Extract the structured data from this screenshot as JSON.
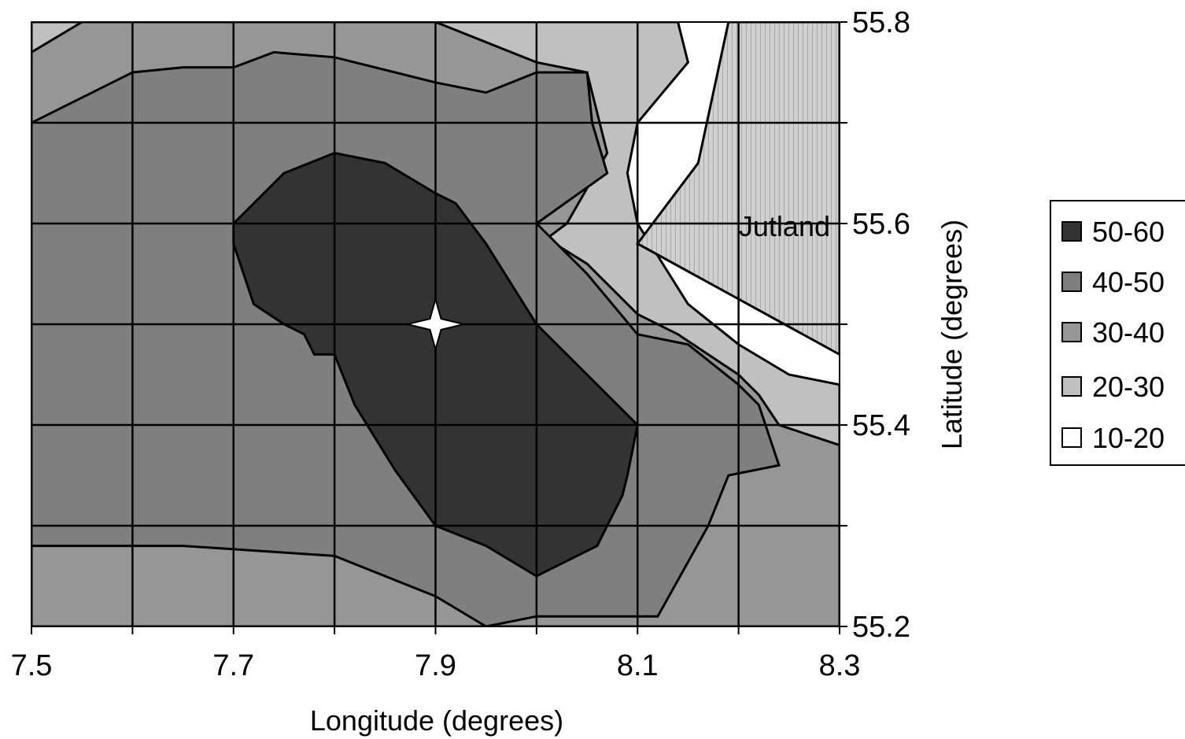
{
  "chart_data": {
    "type": "contour",
    "title": "",
    "xlabel": "Longitude (degrees)",
    "ylabel": "Latitude (degrees)",
    "xlim": [
      7.5,
      8.3
    ],
    "ylim": [
      55.2,
      55.8
    ],
    "x_ticks": [
      "7.5",
      "7.7",
      "7.9",
      "8.1",
      "8.3"
    ],
    "y_ticks": [
      "55.2",
      "55.4",
      "55.6",
      "55.8"
    ],
    "grid": true,
    "y_axis_side": "right",
    "legend_position": "right",
    "legend": [
      {
        "label": "50-60",
        "color": "#333333"
      },
      {
        "label": "40-50",
        "color": "#7f7f7f"
      },
      {
        "label": "30-40",
        "color": "#969696"
      },
      {
        "label": "20-30",
        "color": "#c0c0c0"
      },
      {
        "label": "10-20",
        "color": "#ffffff"
      }
    ],
    "land_color": "#c8c8c8",
    "annotations": [
      {
        "text": "Jutland"
      }
    ],
    "marker": {
      "lon": 7.9,
      "lat": 55.5,
      "shape": "four-point-star",
      "color": "#ffffff"
    },
    "regions": {
      "outer_40_50": [
        [
          7.5,
          55.7
        ],
        [
          7.6,
          55.75
        ],
        [
          7.65,
          55.755
        ],
        [
          7.7,
          55.755
        ],
        [
          7.74,
          55.77
        ],
        [
          7.8,
          55.765
        ],
        [
          7.9,
          55.74
        ],
        [
          7.95,
          55.73
        ],
        [
          8.0,
          55.75
        ],
        [
          8.05,
          55.75
        ],
        [
          8.055,
          55.7
        ],
        [
          8.07,
          55.65
        ],
        [
          8.0,
          55.6
        ],
        [
          8.05,
          55.55
        ],
        [
          8.1,
          55.49
        ],
        [
          8.15,
          55.48
        ],
        [
          8.2,
          55.44
        ],
        [
          8.22,
          55.42
        ],
        [
          8.24,
          55.36
        ],
        [
          8.19,
          55.35
        ],
        [
          8.17,
          55.3
        ],
        [
          8.12,
          55.21
        ],
        [
          8.0,
          55.21
        ],
        [
          7.95,
          55.2
        ],
        [
          7.9,
          55.23
        ],
        [
          7.8,
          55.27
        ],
        [
          7.65,
          55.28
        ],
        [
          7.5,
          55.28
        ]
      ],
      "core_50_60": [
        [
          7.7,
          55.6
        ],
        [
          7.75,
          55.65
        ],
        [
          7.8,
          55.67
        ],
        [
          7.85,
          55.66
        ],
        [
          7.9,
          55.63
        ],
        [
          7.92,
          55.62
        ],
        [
          7.95,
          55.58
        ],
        [
          8.0,
          55.5
        ],
        [
          8.05,
          55.45
        ],
        [
          8.1,
          55.4
        ],
        [
          8.09,
          55.35
        ],
        [
          8.085,
          55.33
        ],
        [
          8.06,
          55.28
        ],
        [
          8.02,
          55.26
        ],
        [
          8.0,
          55.25
        ],
        [
          7.95,
          55.28
        ],
        [
          7.9,
          55.3
        ],
        [
          7.86,
          55.355
        ],
        [
          7.82,
          55.42
        ],
        [
          7.8,
          55.47
        ],
        [
          7.78,
          55.47
        ],
        [
          7.77,
          55.49
        ],
        [
          7.75,
          55.5
        ],
        [
          7.72,
          55.52
        ],
        [
          7.7,
          55.58
        ]
      ],
      "zone_30_40": [
        [
          7.5,
          55.77
        ],
        [
          7.55,
          55.8
        ],
        [
          7.9,
          55.8
        ],
        [
          8.0,
          55.76
        ],
        [
          8.05,
          55.75
        ],
        [
          8.07,
          55.67
        ],
        [
          8.03,
          55.6
        ],
        [
          8.01,
          55.585
        ],
        [
          8.05,
          55.56
        ],
        [
          8.1,
          55.51
        ],
        [
          8.14,
          55.49
        ],
        [
          8.2,
          55.45
        ],
        [
          8.22,
          55.43
        ],
        [
          8.24,
          55.4
        ],
        [
          8.3,
          55.38
        ],
        [
          8.3,
          55.2
        ],
        [
          7.5,
          55.2
        ]
      ],
      "zone_20_30": [
        [
          7.5,
          55.8
        ],
        [
          8.14,
          55.8
        ],
        [
          8.15,
          55.76
        ],
        [
          8.1,
          55.7
        ],
        [
          8.09,
          55.65
        ],
        [
          8.1,
          55.6
        ],
        [
          8.15,
          55.52
        ],
        [
          8.2,
          55.48
        ],
        [
          8.25,
          55.45
        ],
        [
          8.3,
          55.44
        ],
        [
          8.3,
          55.2
        ],
        [
          7.5,
          55.2
        ]
      ],
      "jutland": [
        [
          8.19,
          55.8
        ],
        [
          8.3,
          55.8
        ],
        [
          8.3,
          55.47
        ],
        [
          8.1,
          55.58
        ],
        [
          8.16,
          55.66
        ]
      ]
    }
  }
}
